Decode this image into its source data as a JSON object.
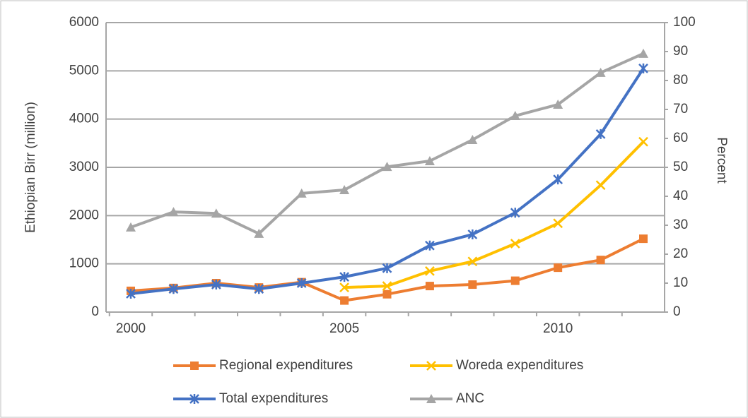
{
  "chart_data": {
    "type": "line",
    "categories": [
      "2000",
      null,
      null,
      null,
      null,
      "2005",
      null,
      null,
      null,
      null,
      "2010",
      null,
      null
    ],
    "y_label": "Ethiopian Birr (million)",
    "y2_label": "Percent",
    "ylim": [
      0,
      6000
    ],
    "yticks": [
      0,
      1000,
      2000,
      3000,
      4000,
      5000,
      6000
    ],
    "y2lim": [
      0,
      100
    ],
    "y2ticks": [
      0,
      10,
      20,
      30,
      40,
      50,
      60,
      70,
      80,
      90,
      100
    ],
    "grid": true,
    "legend": "bottom",
    "series": [
      {
        "name": "Regional expenditures",
        "color": "#ed7d31",
        "marker": "square",
        "values": [
          440,
          500,
          600,
          510,
          620,
          240,
          370,
          540,
          570,
          650,
          920,
          1080,
          1520
        ]
      },
      {
        "name": "Woreda expenditures",
        "color": "#ffc000",
        "marker": "x",
        "values": [
          null,
          null,
          null,
          null,
          null,
          510,
          540,
          850,
          1050,
          1420,
          1840,
          2630,
          3530
        ]
      },
      {
        "name": "Total expenditures",
        "color": "#4472c4",
        "marker": "asterisk",
        "values": [
          380,
          480,
          570,
          480,
          600,
          730,
          910,
          1380,
          1610,
          2060,
          2750,
          3690,
          5050
        ]
      },
      {
        "name": "ANC",
        "color": "#a5a5a5",
        "marker": "triangle",
        "axis": "y2",
        "values": [
          29.3,
          34.6,
          34.1,
          27.1,
          41,
          42.2,
          50.2,
          52.2,
          59.5,
          67.8,
          71.7,
          82.7,
          89.3
        ]
      }
    ]
  }
}
